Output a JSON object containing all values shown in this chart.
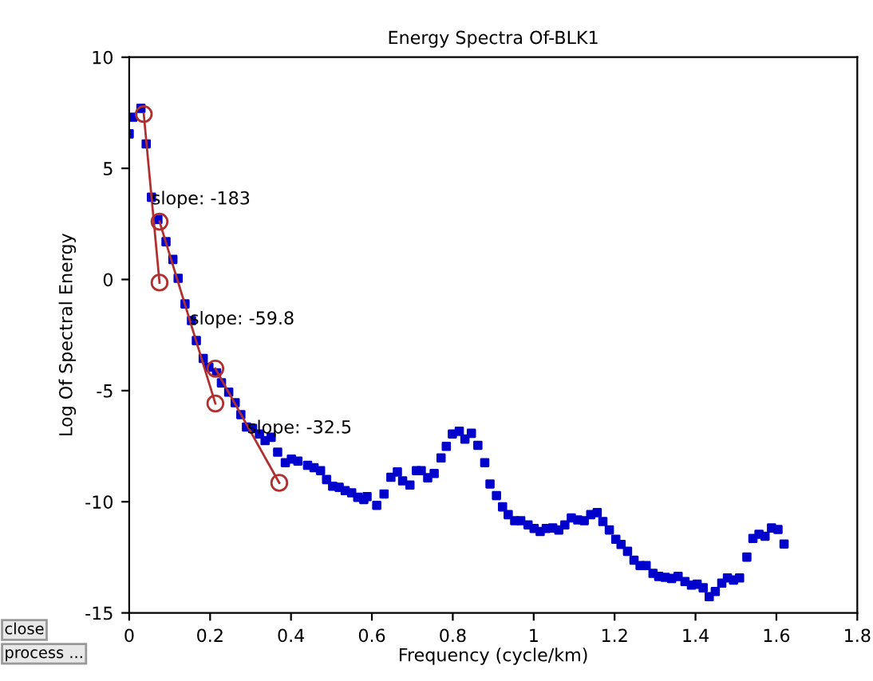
{
  "chart_data": {
    "type": "scatter",
    "title": "Energy Spectra Of-BLK1",
    "xlabel": "Frequency (cycle/km)",
    "ylabel": "Log Of Spectral Energy",
    "xlim": [
      0,
      1.8
    ],
    "xticks": [
      0,
      0.2,
      0.4,
      0.6,
      0.8,
      1,
      1.2,
      1.4,
      1.6,
      1.8
    ],
    "ylim": [
      -15,
      10
    ],
    "yticks": [
      -15,
      -10,
      -5,
      0,
      5,
      10
    ],
    "grid": false,
    "legend": false,
    "series": [
      {
        "marker": "square",
        "color": "#0000cc",
        "x": [
          0.0,
          0.009,
          0.029,
          0.042,
          0.055,
          0.071,
          0.091,
          0.108,
          0.121,
          0.138,
          0.154,
          0.166,
          0.183,
          0.197,
          0.216,
          0.228,
          0.246,
          0.262,
          0.276,
          0.29,
          0.305,
          0.322,
          0.336,
          0.351,
          0.367,
          0.386,
          0.401,
          0.417,
          0.441,
          0.457,
          0.473,
          0.488,
          0.503,
          0.519,
          0.534,
          0.55,
          0.565,
          0.58,
          0.588,
          0.612,
          0.63,
          0.647,
          0.663,
          0.676,
          0.694,
          0.71,
          0.722,
          0.738,
          0.754,
          0.771,
          0.784,
          0.799,
          0.816,
          0.83,
          0.846,
          0.862,
          0.879,
          0.892,
          0.908,
          0.923,
          0.937,
          0.953,
          0.968,
          0.986,
          1.001,
          1.016,
          1.031,
          1.047,
          1.062,
          1.077,
          1.093,
          1.109,
          1.125,
          1.141,
          1.157,
          1.171,
          1.187,
          1.203,
          1.216,
          1.232,
          1.248,
          1.263,
          1.278,
          1.295,
          1.309,
          1.325,
          1.341,
          1.357,
          1.374,
          1.39,
          1.404,
          1.419,
          1.434,
          1.449,
          1.465,
          1.479,
          1.494,
          1.509,
          1.527,
          1.542,
          1.557,
          1.572,
          1.588,
          1.604,
          1.619
        ],
        "values": [
          6.55,
          7.3,
          7.7,
          6.1,
          3.7,
          2.7,
          1.7,
          0.9,
          0.05,
          -1.1,
          -1.85,
          -2.75,
          -3.55,
          -3.95,
          -4.2,
          -4.65,
          -5.07,
          -5.54,
          -6.08,
          -6.64,
          -6.7,
          -6.95,
          -7.25,
          -7.1,
          -7.77,
          -8.24,
          -8.08,
          -8.17,
          -8.36,
          -8.47,
          -8.6,
          -9.0,
          -9.3,
          -9.35,
          -9.5,
          -9.6,
          -9.8,
          -9.9,
          -9.77,
          -10.16,
          -9.65,
          -8.9,
          -8.66,
          -9.06,
          -9.25,
          -8.6,
          -8.6,
          -8.92,
          -8.73,
          -8.03,
          -7.51,
          -6.95,
          -6.83,
          -7.18,
          -6.92,
          -7.46,
          -8.24,
          -9.2,
          -9.72,
          -10.23,
          -10.58,
          -10.85,
          -10.85,
          -11.04,
          -11.2,
          -11.34,
          -11.2,
          -11.18,
          -11.27,
          -11.04,
          -10.73,
          -10.82,
          -10.85,
          -10.58,
          -10.49,
          -10.89,
          -11.27,
          -11.69,
          -11.92,
          -12.23,
          -12.63,
          -12.87,
          -12.87,
          -13.22,
          -13.36,
          -13.4,
          -13.45,
          -13.36,
          -13.59,
          -13.75,
          -13.71,
          -13.87,
          -14.27,
          -14.04,
          -13.66,
          -13.43,
          -13.52,
          -13.43,
          -12.49,
          -11.65,
          -11.46,
          -11.55,
          -11.18,
          -11.25,
          -11.9
        ]
      },
      {
        "type": "line",
        "marker": "circle",
        "color": "#b03030",
        "x": [
          0.036,
          0.075
        ],
        "values": [
          7.44,
          -0.14
        ]
      },
      {
        "type": "line",
        "marker": "circle",
        "color": "#b03030",
        "x": [
          0.075,
          0.213
        ],
        "values": [
          2.6,
          -5.58
        ]
      },
      {
        "type": "line",
        "marker": "circle",
        "color": "#b03030",
        "x": [
          0.213,
          0.371
        ],
        "values": [
          -4.01,
          -9.15
        ]
      }
    ],
    "annotations": [
      {
        "text": "slope: -183",
        "x": 0.055,
        "y": 3.6
      },
      {
        "text": "slope: -59.8",
        "x": 0.15,
        "y": -1.8
      },
      {
        "text": "slope: -32.5",
        "x": 0.292,
        "y": -6.7
      },
      "close",
      "process ..."
    ]
  }
}
